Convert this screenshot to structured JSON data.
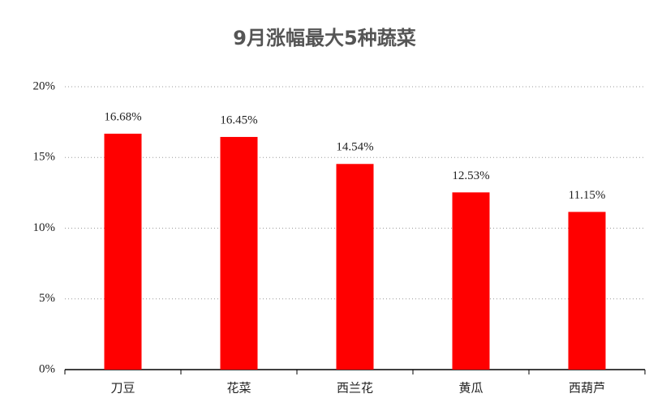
{
  "chart_data": {
    "type": "bar",
    "title": "9月涨幅最大5种蔬菜",
    "categories": [
      "刀豆",
      "花菜",
      "西兰花",
      "黄瓜",
      "西葫芦"
    ],
    "values": [
      16.68,
      16.45,
      14.54,
      12.53,
      11.15
    ],
    "value_labels": [
      "16.68%",
      "16.45%",
      "14.54%",
      "12.53%",
      "11.15%"
    ],
    "color": "#ff0000",
    "ylim": [
      0,
      20
    ],
    "yticks": [
      {
        "value": 0,
        "label": "0%"
      },
      {
        "value": 5,
        "label": "5%"
      },
      {
        "value": 10,
        "label": "10%"
      },
      {
        "value": 15,
        "label": "15%"
      },
      {
        "value": 20,
        "label": "20%"
      }
    ],
    "grid": true
  }
}
